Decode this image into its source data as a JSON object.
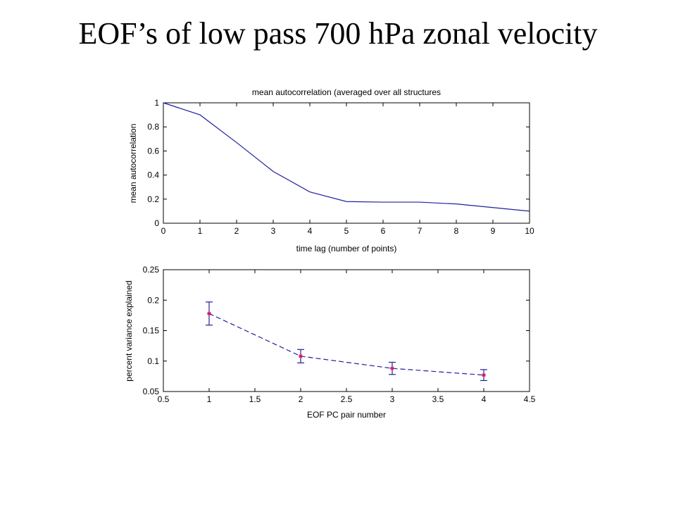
{
  "slide": {
    "title": "EOF’s of low pass 700 hPa zonal velocity"
  },
  "chart_data": [
    {
      "type": "line",
      "title": "mean autocorrelation (averaged over all structures",
      "xlabel": "time lag (number of points)",
      "ylabel": "mean autocorrelation",
      "xlim": [
        0,
        10
      ],
      "ylim": [
        0,
        1
      ],
      "xticks": [
        0,
        1,
        2,
        3,
        4,
        5,
        6,
        7,
        8,
        9,
        10
      ],
      "yticks": [
        0,
        0.2,
        0.4,
        0.6,
        0.8,
        1
      ],
      "xtick_labels": [
        "0",
        "1",
        "2",
        "3",
        "4",
        "5",
        "6",
        "7",
        "8",
        "9",
        "10"
      ],
      "ytick_labels": [
        "0",
        "0.2",
        "0.4",
        "0.6",
        "0.8",
        "1"
      ],
      "grid": false,
      "color": "#2020a0",
      "series": [
        {
          "x": [
            0,
            1,
            2,
            3,
            4,
            5,
            6,
            7,
            8,
            9,
            10
          ],
          "values": [
            1.0,
            0.9,
            0.67,
            0.43,
            0.26,
            0.18,
            0.175,
            0.175,
            0.16,
            0.13,
            0.1
          ]
        }
      ]
    },
    {
      "type": "line",
      "title": "",
      "xlabel": "EOF PC pair number",
      "ylabel": "percent variance explained",
      "xlim": [
        0.5,
        4.5
      ],
      "ylim": [
        0.05,
        0.25
      ],
      "xticks": [
        0.5,
        1,
        1.5,
        2,
        2.5,
        3,
        3.5,
        4,
        4.5
      ],
      "yticks": [
        0.05,
        0.1,
        0.15,
        0.2,
        0.25
      ],
      "xtick_labels": [
        "0.5",
        "1",
        "1.5",
        "2",
        "2.5",
        "3",
        "3.5",
        "4",
        "4.5"
      ],
      "ytick_labels": [
        "0.05",
        "0.1",
        "0.15",
        "0.2",
        "0.25"
      ],
      "grid": false,
      "line_style": "dashed",
      "color": "#2020a0",
      "marker_color": "#d01060",
      "series": [
        {
          "x": [
            1,
            2,
            3,
            4
          ],
          "values": [
            0.178,
            0.108,
            0.088,
            0.077
          ],
          "error": [
            0.019,
            0.011,
            0.01,
            0.009
          ]
        }
      ]
    }
  ]
}
